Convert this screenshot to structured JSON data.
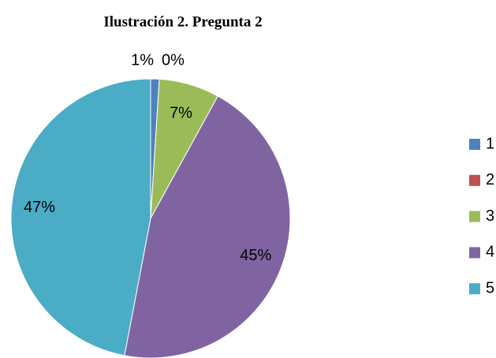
{
  "chart_data": {
    "type": "pie",
    "title": "Ilustración 2. Pregunta 2",
    "categories": [
      "1",
      "2",
      "3",
      "4",
      "5"
    ],
    "values": [
      1,
      0,
      7,
      45,
      47
    ],
    "value_labels": [
      "1%",
      "0%",
      "7%",
      "45%",
      "47%"
    ],
    "colors": [
      "#4f81bd",
      "#c0504d",
      "#9bbb59",
      "#8064a2",
      "#4bacc6"
    ],
    "legend": "right"
  }
}
